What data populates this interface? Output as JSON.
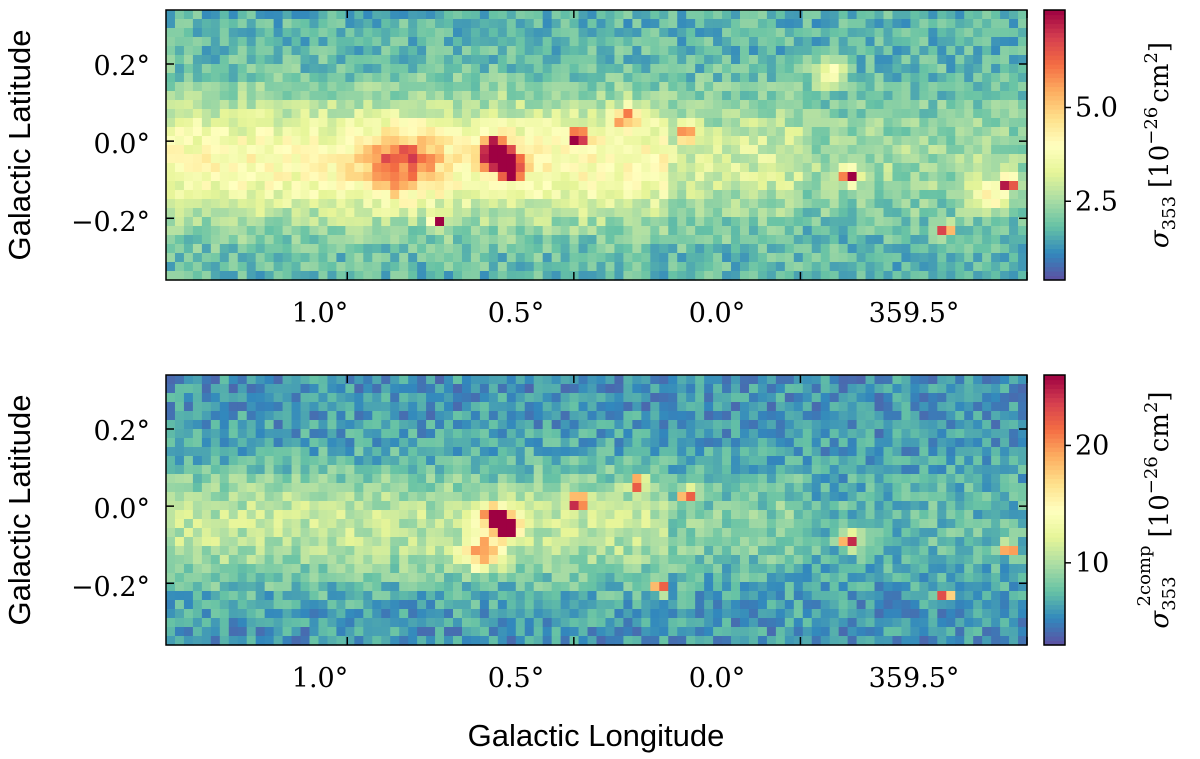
{
  "chart_data": [
    {
      "type": "heatmap",
      "panel": "top",
      "xlabel": "",
      "ylabel": "Galactic Latitude",
      "x_tick_labels": [
        "1.0°",
        "0.5°",
        "0.0°",
        "359.5°"
      ],
      "y_tick_labels": [
        "0.2°",
        "0.0°",
        "−0.2°"
      ],
      "colorbar": {
        "label_main": "σ",
        "label_sub": "353",
        "label_unit": "[10",
        "label_exp": "−26",
        "label_unit_end": "cm",
        "label_unit_sq": "2",
        "label_close": "]",
        "tick_labels": [
          "2.5",
          "5.0"
        ],
        "ticks": [
          2.5,
          5.0
        ],
        "range": [
          0.4,
          7.6
        ],
        "colormap": "Spectral_r"
      },
      "x_ticks_deg": [
        1.0,
        0.5,
        0.0,
        -0.5
      ],
      "y_ticks_deg": [
        0.2,
        0.0,
        -0.2
      ],
      "xlim_deg": [
        1.4,
        -0.5
      ],
      "ylim_deg": [
        -0.36,
        0.34
      ],
      "features": [
        {
          "l": 0.67,
          "b": -0.03,
          "amp": 7.0,
          "s": 0.025
        },
        {
          "l": 0.64,
          "b": -0.07,
          "amp": 6.5,
          "s": 0.018
        },
        {
          "l": 0.49,
          "b": 0.01,
          "amp": 6.5,
          "s": 0.013
        },
        {
          "l": 0.38,
          "b": 0.06,
          "amp": 3.0,
          "s": 0.02
        },
        {
          "l": 0.25,
          "b": 0.02,
          "amp": 4.0,
          "s": 0.015
        },
        {
          "l": -0.11,
          "b": -0.09,
          "amp": 7.0,
          "s": 0.013
        },
        {
          "l": -0.46,
          "b": -0.11,
          "amp": 7.0,
          "s": 0.01
        },
        {
          "l": -0.32,
          "b": -0.23,
          "amp": 6.5,
          "s": 0.01
        },
        {
          "l": 0.8,
          "b": -0.21,
          "amp": 6.5,
          "s": 0.01
        },
        {
          "l": -0.06,
          "b": 0.18,
          "amp": 2.5,
          "s": 0.025
        },
        {
          "l": -0.42,
          "b": -0.14,
          "amp": 2.5,
          "s": 0.03
        },
        {
          "l": 0.88,
          "b": -0.06,
          "amp": 2.5,
          "s": 0.06
        }
      ]
    },
    {
      "type": "heatmap",
      "panel": "bottom",
      "xlabel": "Galactic Longitude",
      "ylabel": "Galactic Latitude",
      "x_tick_labels": [
        "1.0°",
        "0.5°",
        "0.0°",
        "359.5°"
      ],
      "y_tick_labels": [
        "0.2°",
        "0.0°",
        "−0.2°"
      ],
      "colorbar": {
        "label_main": "σ",
        "label_sub": "353",
        "label_sup": "2comp",
        "label_unit": "[10",
        "label_exp": "−26",
        "label_unit_end": "cm",
        "label_unit_sq": "2",
        "label_close": "]",
        "tick_labels": [
          "10",
          "20"
        ],
        "ticks": [
          10,
          20
        ],
        "range": [
          3,
          26
        ],
        "colormap": "Spectral_r"
      },
      "x_ticks_deg": [
        1.0,
        0.5,
        0.0,
        -0.5
      ],
      "y_ticks_deg": [
        0.2,
        0.0,
        -0.2
      ],
      "xlim_deg": [
        1.4,
        -0.5
      ],
      "ylim_deg": [
        -0.36,
        0.34
      ],
      "features": [
        {
          "l": 0.67,
          "b": -0.03,
          "amp": 24,
          "s": 0.02
        },
        {
          "l": 0.64,
          "b": -0.06,
          "amp": 22,
          "s": 0.015
        },
        {
          "l": 0.49,
          "b": 0.01,
          "amp": 22,
          "s": 0.012
        },
        {
          "l": 0.31,
          "b": -0.21,
          "amp": 24,
          "s": 0.01
        },
        {
          "l": 0.36,
          "b": 0.06,
          "amp": 22,
          "s": 0.01
        },
        {
          "l": 0.25,
          "b": 0.03,
          "amp": 22,
          "s": 0.01
        },
        {
          "l": -0.11,
          "b": -0.09,
          "amp": 24,
          "s": 0.013
        },
        {
          "l": -0.46,
          "b": -0.11,
          "amp": 24,
          "s": 0.01
        },
        {
          "l": -0.32,
          "b": -0.23,
          "amp": 20,
          "s": 0.01
        },
        {
          "l": 0.7,
          "b": -0.12,
          "amp": 10,
          "s": 0.03
        }
      ]
    }
  ]
}
